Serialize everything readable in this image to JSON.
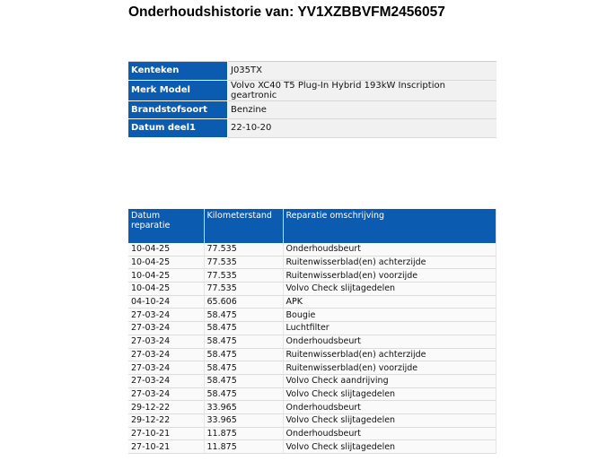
{
  "title": "Onderhoudshistorie van: YV1XZBBVFM2456057",
  "vehicle": [
    {
      "label": "Kenteken",
      "value": "J035TX"
    },
    {
      "label": "Merk Model",
      "value": "Volvo XC40 T5 Plug-In Hybrid 193kW Inscription geartronic"
    },
    {
      "label": "Brandstofsoort",
      "value": "Benzine"
    },
    {
      "label": "Datum deel1",
      "value": "22-10-20"
    }
  ],
  "repairs": {
    "headers": [
      "Datum reparatie",
      "Kilometerstand",
      "Reparatie omschrijving"
    ],
    "rows": [
      [
        "10-04-25",
        "77.535",
        "Onderhoudsbeurt"
      ],
      [
        "10-04-25",
        "77.535",
        "Ruitenwisserblad(en) achterzijde"
      ],
      [
        "10-04-25",
        "77.535",
        "Ruitenwisserblad(en) voorzijde"
      ],
      [
        "10-04-25",
        "77.535",
        "Volvo Check slijtagedelen"
      ],
      [
        "04-10-24",
        "65.606",
        "APK"
      ],
      [
        "27-03-24",
        "58.475",
        "Bougie"
      ],
      [
        "27-03-24",
        "58.475",
        "Luchtfilter"
      ],
      [
        "27-03-24",
        "58.475",
        "Onderhoudsbeurt"
      ],
      [
        "27-03-24",
        "58.475",
        "Ruitenwisserblad(en) achterzijde"
      ],
      [
        "27-03-24",
        "58.475",
        "Ruitenwisserblad(en) voorzijde"
      ],
      [
        "27-03-24",
        "58.475",
        "Volvo Check aandrijving"
      ],
      [
        "27-03-24",
        "58.475",
        "Volvo Check slijtagedelen"
      ],
      [
        "29-12-22",
        "33.965",
        "Onderhoudsbeurt"
      ],
      [
        "29-12-22",
        "33.965",
        "Volvo Check slijtagedelen"
      ],
      [
        "27-10-21",
        "11.875",
        "Onderhoudsbeurt"
      ],
      [
        "27-10-21",
        "11.875",
        "Volvo Check slijtagedelen"
      ]
    ]
  },
  "colors": {
    "header_blue": "#0b5cb0"
  }
}
